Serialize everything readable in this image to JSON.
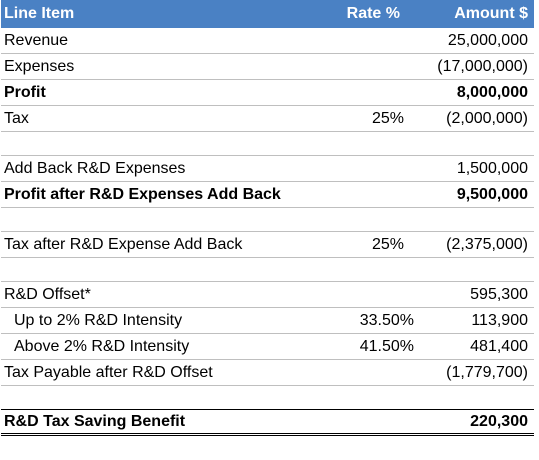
{
  "table": {
    "headers": {
      "line_item": "Line Item",
      "rate": "Rate %",
      "amount": "Amount $"
    },
    "rows": [
      {
        "type": "data",
        "label": "Revenue",
        "rate": "",
        "amount": "25,000,000",
        "bold": false,
        "indent": false
      },
      {
        "type": "data",
        "label": "Expenses",
        "rate": "",
        "amount": "(17,000,000)",
        "bold": false,
        "indent": false
      },
      {
        "type": "data",
        "label": "Profit",
        "rate": "",
        "amount": "8,000,000",
        "bold": true,
        "indent": false
      },
      {
        "type": "data",
        "label": "Tax",
        "rate": "25%",
        "amount": "(2,000,000)",
        "bold": false,
        "indent": false
      },
      {
        "type": "spacer"
      },
      {
        "type": "data",
        "label": "Add Back R&D Expenses",
        "rate": "",
        "amount": "1,500,000",
        "bold": false,
        "indent": false
      },
      {
        "type": "data",
        "label": "Profit after R&D Expenses Add Back",
        "rate": "",
        "amount": "9,500,000",
        "bold": true,
        "indent": false
      },
      {
        "type": "spacer"
      },
      {
        "type": "data",
        "label": "Tax after R&D Expense Add Back",
        "rate": "25%",
        "amount": "(2,375,000)",
        "bold": false,
        "indent": false
      },
      {
        "type": "spacer"
      },
      {
        "type": "data",
        "label": "R&D Offset*",
        "rate": "",
        "amount": "595,300",
        "bold": false,
        "indent": false
      },
      {
        "type": "data",
        "label": "Up to 2% R&D Intensity",
        "rate": "33.50%",
        "amount": "113,900",
        "bold": false,
        "indent": true
      },
      {
        "type": "data",
        "label": "Above 2% R&D Intensity",
        "rate": "41.50%",
        "amount": "481,400",
        "bold": false,
        "indent": true
      },
      {
        "type": "data",
        "label": "Tax Payable after R&D Offset",
        "rate": "",
        "amount": "(1,779,700)",
        "bold": false,
        "indent": false
      },
      {
        "type": "spacer"
      },
      {
        "type": "data",
        "label": "R&D Tax Saving Benefit",
        "rate": "",
        "amount": "220,300",
        "bold": true,
        "indent": false
      }
    ]
  },
  "colors": {
    "header_background": "#4a81c4",
    "header_text": "#ffffff",
    "gridline": "#bfbfbf"
  }
}
